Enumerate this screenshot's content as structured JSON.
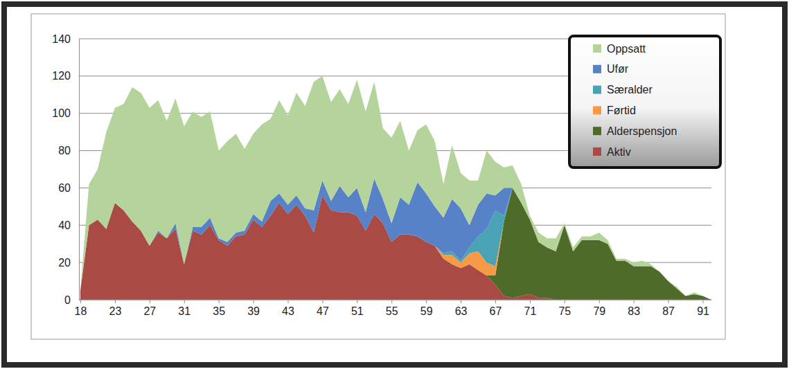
{
  "chart_data": {
    "type": "area",
    "stacked": true,
    "grid": true,
    "legend": "top-right",
    "categories": [
      "18",
      null,
      null,
      null,
      "23",
      null,
      null,
      null,
      "27",
      null,
      null,
      null,
      "31",
      null,
      null,
      null,
      "35",
      null,
      null,
      null,
      "39",
      null,
      null,
      null,
      "43",
      null,
      null,
      null,
      "47",
      null,
      null,
      null,
      "51",
      null,
      null,
      null,
      "55",
      null,
      null,
      null,
      "59",
      null,
      null,
      null,
      "63",
      null,
      null,
      null,
      "67",
      null,
      null,
      null,
      "71",
      null,
      null,
      null,
      "75",
      null,
      null,
      null,
      "79",
      null,
      null,
      null,
      "83",
      null,
      null,
      null,
      "87",
      null,
      null,
      null,
      "91",
      null
    ],
    "ylim": [
      0,
      140
    ],
    "yticks": [
      0,
      20,
      40,
      60,
      80,
      100,
      120,
      140
    ],
    "series": [
      {
        "name": "Aktiv",
        "color": "#a94a45",
        "values": [
          5,
          40,
          43,
          38,
          52,
          48,
          42,
          37,
          29,
          36,
          33,
          38,
          19,
          37,
          35,
          40,
          32,
          29,
          34,
          35,
          43,
          39,
          45,
          52,
          46,
          51,
          45,
          36,
          56,
          48,
          47,
          47,
          45,
          37,
          46,
          41,
          31,
          35,
          35,
          34,
          31,
          29,
          22,
          19,
          17,
          19,
          16,
          13,
          8,
          2,
          1,
          2,
          3,
          1,
          1,
          0,
          0,
          0,
          0,
          0,
          0,
          0,
          0,
          0,
          0,
          0,
          0,
          0,
          0,
          0,
          0,
          0,
          0,
          0
        ]
      },
      {
        "name": "Alderspensjon",
        "color": "#4f6b2a",
        "values": [
          0,
          0,
          0,
          0,
          0,
          0,
          0,
          0,
          0,
          0,
          0,
          0,
          0,
          0,
          0,
          0,
          0,
          0,
          0,
          0,
          0,
          0,
          0,
          0,
          0,
          0,
          0,
          0,
          0,
          0,
          0,
          0,
          0,
          0,
          0,
          0,
          0,
          0,
          0,
          0,
          0,
          0,
          0,
          0,
          0,
          0,
          0,
          0,
          5,
          40,
          59,
          50,
          40,
          30,
          27,
          26,
          40,
          26,
          32,
          32,
          32,
          30,
          21,
          21,
          18,
          18,
          18,
          15,
          10,
          6,
          2,
          3,
          2,
          0
        ]
      },
      {
        "name": "Førtid",
        "color": "#f79a46",
        "values": [
          0,
          0,
          0,
          0,
          0,
          0,
          0,
          0,
          0,
          0,
          0,
          0,
          0,
          0,
          0,
          0,
          0,
          0,
          0,
          0,
          0,
          0,
          0,
          0,
          0,
          0,
          0,
          0,
          0,
          0,
          0,
          0,
          0,
          0,
          0,
          0,
          0,
          0,
          0,
          0,
          0,
          0,
          2,
          5,
          3,
          6,
          10,
          7,
          5,
          0,
          0,
          0,
          0,
          0,
          0,
          0,
          0,
          0,
          0,
          0,
          0,
          0,
          0,
          0,
          0,
          0,
          0,
          0,
          0,
          0,
          0,
          0,
          0,
          0
        ]
      },
      {
        "name": "Særalder",
        "color": "#4aa3b5",
        "values": [
          0,
          0,
          0,
          0,
          0,
          0,
          0,
          0,
          0,
          0,
          0,
          0,
          0,
          0,
          0,
          0,
          0,
          0,
          0,
          0,
          0,
          0,
          0,
          0,
          0,
          0,
          0,
          0,
          0,
          0,
          0,
          0,
          0,
          0,
          0,
          0,
          0,
          0,
          0,
          0,
          0,
          0,
          1,
          2,
          1,
          3,
          8,
          18,
          30,
          3,
          0,
          0,
          0,
          0,
          0,
          0,
          0,
          0,
          0,
          0,
          0,
          0,
          0,
          0,
          0,
          0,
          0,
          0,
          0,
          0,
          0,
          0,
          0,
          0
        ]
      },
      {
        "name": "Ufør",
        "color": "#5782c8",
        "values": [
          0,
          0,
          0,
          0,
          0,
          0,
          0,
          0,
          0,
          1,
          0,
          3,
          0,
          2,
          4,
          4,
          1,
          2,
          2,
          2,
          3,
          3,
          8,
          5,
          5,
          5,
          4,
          12,
          8,
          5,
          14,
          8,
          15,
          10,
          19,
          13,
          10,
          20,
          16,
          29,
          26,
          21,
          19,
          28,
          28,
          12,
          17,
          19,
          8,
          15,
          0,
          0,
          0,
          0,
          0,
          0,
          0,
          0,
          0,
          0,
          0,
          0,
          0,
          0,
          0,
          0,
          0,
          0,
          0,
          0,
          0,
          0,
          0,
          0
        ]
      },
      {
        "name": "Oppsatt",
        "color": "#b5d49b",
        "values": [
          0,
          22,
          27,
          52,
          51,
          57,
          72,
          74,
          74,
          70,
          63,
          67,
          74,
          62,
          59,
          57,
          47,
          54,
          53,
          44,
          43,
          52,
          44,
          50,
          48,
          55,
          55,
          69,
          56,
          53,
          52,
          50,
          58,
          54,
          52,
          38,
          46,
          41,
          29,
          28,
          37,
          35,
          18,
          29,
          19,
          24,
          13,
          23,
          18,
          11,
          12,
          10,
          2,
          5,
          5,
          7,
          1,
          2,
          2,
          2,
          4,
          2,
          1,
          1,
          2,
          3,
          1,
          0,
          0,
          1,
          0,
          1,
          0,
          0
        ]
      }
    ]
  }
}
